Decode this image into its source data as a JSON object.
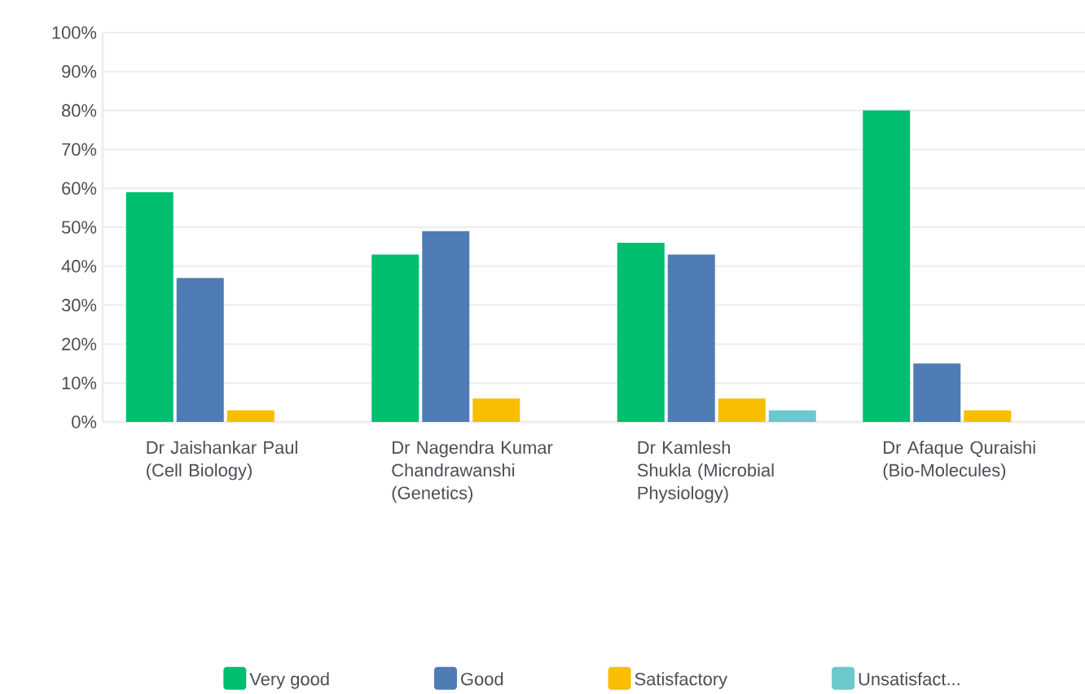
{
  "chart_data": {
    "type": "bar",
    "categories": [
      "Dr Jaishankar Paul (Cell Biology)",
      "Dr Nagendra Kumar Chandrawanshi (Genetics)",
      "Dr Kamlesh Shukla (Microbial Physiology)",
      "Dr Afaque Quraishi (Bio-Molecules)"
    ],
    "series": [
      {
        "name": "Very good",
        "color": "#00bf6f",
        "values": [
          59,
          43,
          46,
          80
        ]
      },
      {
        "name": "Good",
        "color": "#507cb6",
        "values": [
          37,
          49,
          43,
          15
        ]
      },
      {
        "name": "Satisfactory",
        "color": "#f9be00",
        "values": [
          3,
          6,
          6,
          3
        ]
      },
      {
        "name": "Unsatisfact...",
        "color": "#6bc8cd",
        "values": [
          0,
          0,
          3,
          0
        ]
      }
    ],
    "ylim": [
      0,
      100
    ],
    "yticks": [
      {
        "value": 0,
        "label": "0%"
      },
      {
        "value": 10,
        "label": "10%"
      },
      {
        "value": 20,
        "label": "20%"
      },
      {
        "value": 30,
        "label": "30%"
      },
      {
        "value": 40,
        "label": "40%"
      },
      {
        "value": 50,
        "label": "50%"
      },
      {
        "value": 60,
        "label": "60%"
      },
      {
        "value": 70,
        "label": "70%"
      },
      {
        "value": 80,
        "label": "80%"
      },
      {
        "value": 90,
        "label": "90%"
      },
      {
        "value": 100,
        "label": "100%"
      }
    ],
    "grid": "y",
    "legend": "bottom"
  }
}
